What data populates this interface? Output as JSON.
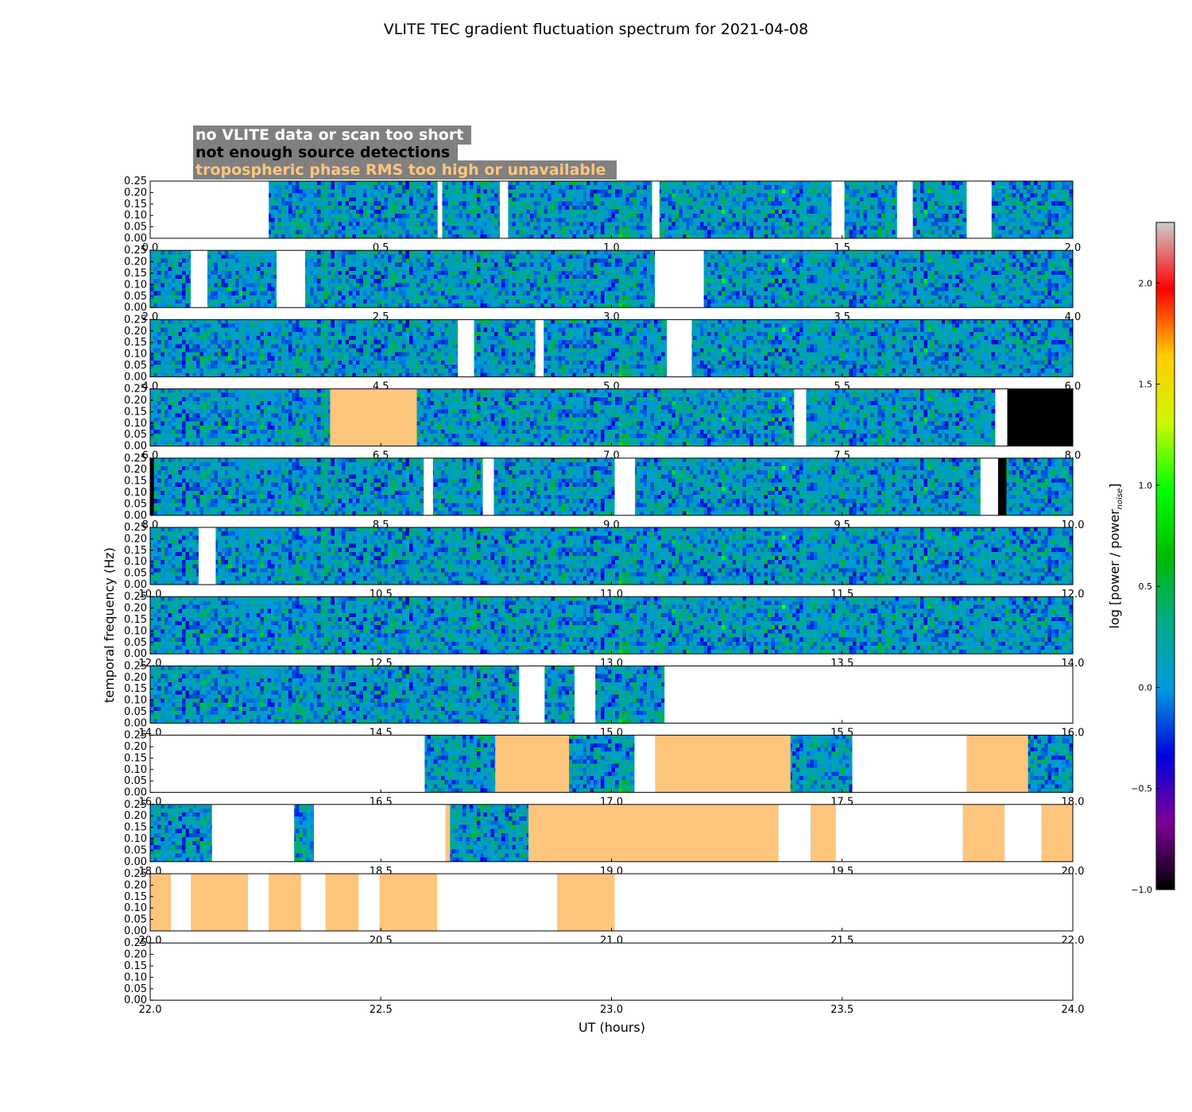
{
  "chart_data": {
    "type": "heatmap",
    "title": "VLITE TEC gradient fluctuation spectrum for 2021-04-08",
    "xlabel": "UT (hours)",
    "ylabel": "temporal frequency (Hz)",
    "colorbar_label": "log [power / power",
    "colorbar_label_sub": "noise",
    "colorbar_label_end": "]",
    "colorbar_range": [
      -1.0,
      2.3
    ],
    "colorbar_ticks": [
      "2.0",
      "1.5",
      "1.0",
      "0.5",
      "0.0",
      "−0.5",
      "−1.0"
    ],
    "colorbar_tick_values": [
      2.0,
      1.5,
      1.0,
      0.5,
      0.0,
      -0.5,
      -1.0
    ],
    "colormap": "nipy_spectral",
    "yticks": [
      "0.00",
      "0.05",
      "0.10",
      "0.15",
      "0.20",
      "0.25"
    ],
    "ylim": [
      0,
      0.25
    ],
    "legend": [
      {
        "label": "no VLITE data or scan too short",
        "text_color": "#ffffff",
        "fill": "#ffffff"
      },
      {
        "label": "not enough source detections",
        "text_color": "#000000",
        "fill": "#000000"
      },
      {
        "label": "tropospheric phase RMS too high or unavailable",
        "text_color": "#fec57c",
        "fill": "#fec57c"
      }
    ],
    "legend_background": "#808080",
    "flag_colors": {
      "nodata": "#ffffff",
      "detect": "#000000",
      "tropo": "#fec57c"
    },
    "panels": [
      {
        "range": [
          0,
          2
        ],
        "xticks": [
          "0.0",
          "0.5",
          "1.0",
          "1.5",
          "2.0"
        ],
        "flags": [
          [
            0,
            0.257,
            "nodata"
          ],
          [
            0.623,
            0.633,
            "nodata"
          ],
          [
            0.758,
            0.776,
            "nodata"
          ],
          [
            1.088,
            1.104,
            "nodata"
          ],
          [
            1.477,
            1.505,
            "nodata"
          ],
          [
            1.619,
            1.653,
            "nodata"
          ],
          [
            1.77,
            1.824,
            "nodata"
          ]
        ]
      },
      {
        "range": [
          2,
          4
        ],
        "xticks": [
          "2.0",
          "2.5",
          "3.0",
          "3.5",
          "4.0"
        ],
        "flags": [
          [
            2.088,
            2.124,
            "nodata"
          ],
          [
            2.274,
            2.336,
            "nodata"
          ],
          [
            3.094,
            3.2,
            "nodata"
          ]
        ]
      },
      {
        "range": [
          4,
          6
        ],
        "xticks": [
          "4.0",
          "4.5",
          "5.0",
          "5.5",
          "6.0"
        ],
        "flags": [
          [
            4.667,
            4.702,
            "nodata"
          ],
          [
            4.835,
            4.853,
            "nodata"
          ],
          [
            5.12,
            5.174,
            "nodata"
          ]
        ]
      },
      {
        "range": [
          6,
          8
        ],
        "xticks": [
          "6.0",
          "6.5",
          "7.0",
          "7.5",
          "8.0"
        ],
        "flags": [
          [
            6.39,
            6.578,
            "tropo"
          ],
          [
            7.396,
            7.422,
            "nodata"
          ],
          [
            7.832,
            7.858,
            "nodata"
          ],
          [
            7.858,
            8.0,
            "detect"
          ]
        ]
      },
      {
        "range": [
          8,
          10
        ],
        "xticks": [
          "8.0",
          "8.5",
          "9.0",
          "9.5",
          "10.0"
        ],
        "flags": [
          [
            8.0,
            8.008,
            "detect"
          ],
          [
            8.593,
            8.613,
            "nodata"
          ],
          [
            8.721,
            8.745,
            "nodata"
          ],
          [
            9.007,
            9.051,
            "nodata"
          ],
          [
            9.8,
            9.838,
            "nodata"
          ],
          [
            9.838,
            9.856,
            "detect"
          ]
        ]
      },
      {
        "range": [
          10,
          12
        ],
        "xticks": [
          "10.0",
          "10.5",
          "11.0",
          "11.5",
          "12.0"
        ],
        "flags": [
          [
            10.105,
            10.142,
            "nodata"
          ]
        ]
      },
      {
        "range": [
          12,
          14
        ],
        "xticks": [
          "12.0",
          "12.5",
          "13.0",
          "13.5",
          "14.0"
        ],
        "flags": []
      },
      {
        "range": [
          14,
          16
        ],
        "xticks": [
          "14.0",
          "14.5",
          "15.0",
          "15.5",
          "16.0"
        ],
        "flags": [
          [
            14.8,
            14.855,
            "nodata"
          ],
          [
            14.92,
            14.965,
            "nodata"
          ],
          [
            15.115,
            16.0,
            "nodata"
          ]
        ]
      },
      {
        "range": [
          16,
          18
        ],
        "xticks": [
          "16.0",
          "16.5",
          "17.0",
          "17.5",
          "18.0"
        ],
        "flags": [
          [
            16.0,
            16.595,
            "nodata"
          ],
          [
            16.748,
            16.908,
            "tropo"
          ],
          [
            17.05,
            17.095,
            "nodata"
          ],
          [
            17.095,
            17.388,
            "tropo"
          ],
          [
            17.522,
            17.77,
            "nodata"
          ],
          [
            17.77,
            17.903,
            "tropo"
          ]
        ]
      },
      {
        "range": [
          18,
          20
        ],
        "xticks": [
          "18.0",
          "18.5",
          "19.0",
          "19.5",
          "20.0"
        ],
        "flags": [
          [
            18.134,
            18.312,
            "nodata"
          ],
          [
            18.355,
            18.64,
            "nodata"
          ],
          [
            18.64,
            18.65,
            "tropo"
          ],
          [
            18.82,
            19.362,
            "tropo"
          ],
          [
            19.362,
            19.432,
            "nodata"
          ],
          [
            19.432,
            19.486,
            "tropo"
          ],
          [
            19.486,
            19.762,
            "nodata"
          ],
          [
            19.762,
            19.852,
            "tropo"
          ],
          [
            19.852,
            19.932,
            "nodata"
          ],
          [
            19.932,
            20.0,
            "tropo"
          ]
        ]
      },
      {
        "range": [
          20,
          22
        ],
        "xticks": [
          "20.0",
          "20.5",
          "21.0",
          "21.5",
          "22.0"
        ],
        "flags": [
          [
            20.0,
            22.0,
            "nodata"
          ],
          [
            20.0,
            20.045,
            "tropo"
          ],
          [
            20.088,
            20.212,
            "tropo"
          ],
          [
            20.257,
            20.327,
            "tropo"
          ],
          [
            20.38,
            20.452,
            "tropo"
          ],
          [
            20.497,
            20.622,
            "tropo"
          ],
          [
            20.882,
            21.007,
            "tropo"
          ]
        ]
      },
      {
        "range": [
          22,
          24
        ],
        "xticks": [
          "22.0",
          "22.5",
          "23.0",
          "23.5",
          "24.0"
        ],
        "flags": [
          [
            22.0,
            24.0,
            "nodata"
          ]
        ]
      }
    ]
  }
}
